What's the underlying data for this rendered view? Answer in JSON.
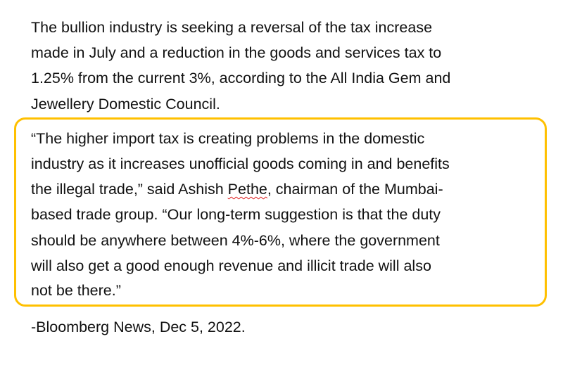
{
  "paragraph1": [
    "The bullion industry is seeking a reversal of the tax increase",
    "made in July and a reduction in the goods and services tax to",
    "1.25% from the current 3%, according to the All India Gem and",
    "Jewellery Domestic Council."
  ],
  "quote": {
    "line1": "“The higher import tax is creating problems in the domestic",
    "line2": "industry as it increases unofficial goods coming in and benefits",
    "line3_pre": "the illegal trade,” said Ashish ",
    "line3_flagged": "Pethe",
    "line3_post": ", chairman of the Mumbai-",
    "line4": "based trade group. “Our long-term suggestion is that the duty",
    "line5": "should be anywhere between 4%-6%, where the government",
    "line6": "will also get a good enough revenue and illicit trade will also",
    "line7": "not be there.”",
    "highlight_color": "#FFC000"
  },
  "source": "-Bloomberg News, Dec 5, 2022."
}
